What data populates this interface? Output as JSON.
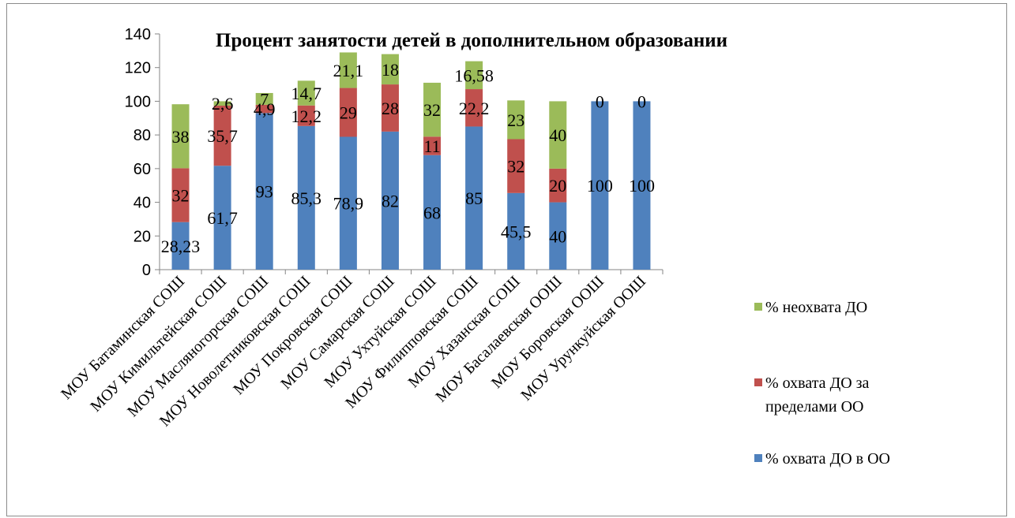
{
  "chart_data": {
    "type": "bar",
    "stacked": true,
    "title": "Процент занятости детей в дополнительном образовании",
    "categories": [
      "МОУ Батаминская СОШ",
      "МОУ Кимильтейская СОШ",
      "МОУ Масляногорская СОШ",
      "МОУ Новолетниковская СОШ",
      "МОУ Покровская СОШ",
      "МОУ Самарская СОШ",
      "МОУ Ухтуйская СОШ",
      "МОУ Филипповская СОШ",
      "МОУ Хазанская СОШ",
      "МОУ Басалаевская ООШ",
      "МОУ Боровская ООШ",
      "МОУ Урункуйская ООШ"
    ],
    "series": [
      {
        "name": "% охвата ДО в ОО",
        "color": "#4f81bd",
        "values": [
          28.23,
          61.7,
          93,
          85.3,
          78.9,
          82,
          68,
          85,
          45.5,
          40,
          100,
          100
        ],
        "labels": [
          "28,23",
          "61,7",
          "93",
          "85,3",
          "78,9",
          "82",
          "68",
          "85",
          "45,5",
          "40",
          "100",
          "100"
        ]
      },
      {
        "name": "% охвата ДО за пределами ОО",
        "color": "#c0504d",
        "values": [
          32,
          35.7,
          4.9,
          12.2,
          29,
          28,
          11,
          22.2,
          32,
          20,
          0,
          0
        ],
        "labels": [
          "32",
          "35,7",
          "4,9",
          "12,2",
          "29",
          "28",
          "11",
          "22,2",
          "32",
          "20",
          "",
          ""
        ]
      },
      {
        "name": "% неохвата ДО",
        "color": "#9bbb59",
        "values": [
          38,
          2.6,
          7,
          14.7,
          21.1,
          18,
          32,
          16.58,
          23,
          40,
          0,
          0
        ],
        "labels": [
          "38",
          "2,6",
          "7",
          "14,7",
          "21,1",
          "18",
          "32",
          "16,58",
          "23",
          "40",
          "0",
          "0"
        ]
      }
    ],
    "ylim": [
      0,
      140
    ],
    "yticks": [
      "0",
      "20",
      "40",
      "60",
      "80",
      "100",
      "120",
      "140"
    ],
    "legend_position": "right",
    "xlabel": "",
    "ylabel": "",
    "grid": false
  }
}
